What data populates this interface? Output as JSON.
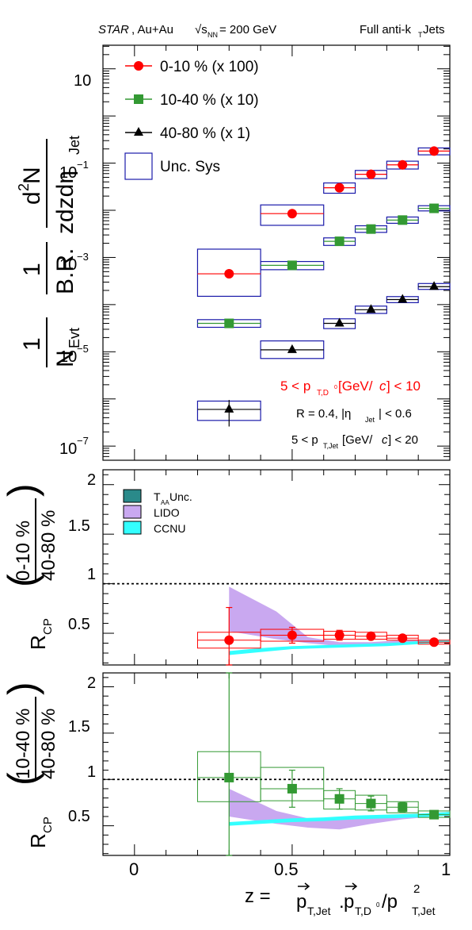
{
  "header": {
    "experiment": "STAR",
    "system": ", Au+Au",
    "energy": "√s",
    "energy_sub": "NN",
    "energy_value": " = 200 GeV",
    "jets_label": "Full anti-k",
    "jets_sub": "T",
    "jets_suffix": " Jets"
  },
  "colors": {
    "central": "#ff0000",
    "mid": "#339933",
    "peripheral": "#000000",
    "sys_box": "#1a1aaa",
    "taa": "#2a8a8a",
    "lido": "#c9a8f0",
    "ccnu": "#33ffff"
  },
  "top_panel": {
    "y_axis_label": {
      "frac1_num": "1",
      "frac1_den": "N",
      "frac1_den_sub": "Evt",
      "frac2_num": "1",
      "frac2_den": "B.R.",
      "frac3_num": "d",
      "frac3_num_sup": "2",
      "frac3_num_rest": "N",
      "frac3_den": "zdzdη",
      "frac3_den_sub": "Jet"
    },
    "y_ticks": [
      "10",
      "10",
      "10",
      "10",
      "10"
    ],
    "y_tick_exps": [
      "",
      "−1",
      "−3",
      "−5",
      "−7"
    ],
    "legend": [
      {
        "label": "0-10 % (x 100)",
        "marker": "circle"
      },
      {
        "label": "10-40 % (x 10)",
        "marker": "square"
      },
      {
        "label": "40-80 % (x 1)",
        "marker": "triangle"
      },
      {
        "label": "Unc. Sys",
        "marker": "box"
      }
    ],
    "annotations": {
      "pt_d": "5 < p",
      "pt_d_sub": "T,D",
      "pt_d_sup": "0",
      "pt_d_rest": " [GeV/",
      "pt_d_c": "c",
      "pt_d_end": "] < 10",
      "radius": "R = 0.4, |η",
      "radius_sub": "Jet",
      "radius_end": "| < 0.6",
      "pt_jet": "5 < p",
      "pt_jet_sub": "T,Jet",
      "pt_jet_rest": " [GeV/",
      "pt_jet_c": "c",
      "pt_jet_end": "] < 20"
    }
  },
  "middle_panel": {
    "y_label": "R",
    "y_label_sub": "CP",
    "ratio_num": "0-10 %",
    "ratio_den": "40-80 %",
    "y_ticks": [
      "0.5",
      "1",
      "1.5",
      "2"
    ],
    "legend": [
      {
        "label": "T",
        "sub": "AA",
        "rest": " Unc."
      },
      {
        "label": "LIDO",
        "sub": "",
        "rest": ""
      },
      {
        "label": "CCNU",
        "sub": "",
        "rest": ""
      }
    ]
  },
  "bottom_panel": {
    "y_label": "R",
    "y_label_sub": "CP",
    "ratio_num": "10-40 %",
    "ratio_den": "40-80 %",
    "y_ticks": [
      "0.5",
      "1",
      "1.5",
      "2"
    ],
    "x_ticks": [
      "0",
      "0.5",
      "1"
    ],
    "x_label": {
      "z": "z =",
      "p1": "p",
      "p1_sub": "T,Jet",
      "dot": ".",
      "p2": "p",
      "p2_sub": "T,D",
      "p2_sup": "0",
      "slash": "/p",
      "p3_sup": "2",
      "p3_sub": "T,Jet"
    }
  },
  "chart_data": [
    {
      "type": "scatter",
      "title": "",
      "xlim": [
        -0.1,
        1.0
      ],
      "ylim_log10": [
        -7.3,
        1.5
      ],
      "log_y": true,
      "series": [
        {
          "name": "0-10 % (x 100)",
          "points": [
            {
              "x": 0.3,
              "xlo": 0.2,
              "xhi": 0.4,
              "y": 0.00045,
              "ylo": 0.00015,
              "yhi": 0.0015
            },
            {
              "x": 0.5,
              "xlo": 0.4,
              "xhi": 0.6,
              "y": 0.0085,
              "ylo": 0.0048,
              "yhi": 0.013
            },
            {
              "x": 0.65,
              "xlo": 0.6,
              "xhi": 0.7,
              "y": 0.03,
              "ylo": 0.023,
              "yhi": 0.038
            },
            {
              "x": 0.75,
              "xlo": 0.7,
              "xhi": 0.8,
              "y": 0.058,
              "ylo": 0.047,
              "yhi": 0.07
            },
            {
              "x": 0.85,
              "xlo": 0.8,
              "xhi": 0.9,
              "y": 0.092,
              "ylo": 0.075,
              "yhi": 0.11
            },
            {
              "x": 0.95,
              "xlo": 0.9,
              "xhi": 1.0,
              "y": 0.18,
              "ylo": 0.15,
              "yhi": 0.21
            }
          ]
        },
        {
          "name": "10-40 % (x 10)",
          "points": [
            {
              "x": 0.3,
              "xlo": 0.2,
              "xhi": 0.4,
              "y": 4e-05,
              "ylo": 3.3e-05,
              "yhi": 4.8e-05
            },
            {
              "x": 0.5,
              "xlo": 0.4,
              "xhi": 0.6,
              "y": 0.00068,
              "ylo": 0.00055,
              "yhi": 0.00082
            },
            {
              "x": 0.65,
              "xlo": 0.6,
              "xhi": 0.7,
              "y": 0.0022,
              "ylo": 0.0018,
              "yhi": 0.0026
            },
            {
              "x": 0.75,
              "xlo": 0.7,
              "xhi": 0.8,
              "y": 0.004,
              "ylo": 0.0034,
              "yhi": 0.0047
            },
            {
              "x": 0.85,
              "xlo": 0.8,
              "xhi": 0.9,
              "y": 0.0062,
              "ylo": 0.0053,
              "yhi": 0.0072
            },
            {
              "x": 0.95,
              "xlo": 0.9,
              "xhi": 1.0,
              "y": 0.011,
              "ylo": 0.0097,
              "yhi": 0.0125
            }
          ]
        },
        {
          "name": "40-80 % (x 1)",
          "points": [
            {
              "x": 0.3,
              "xlo": 0.2,
              "xhi": 0.4,
              "y": 6e-07,
              "ylo": 3.5e-07,
              "yhi": 9e-07,
              "stat_lo": 2.6e-07,
              "stat_hi": 9.5e-07
            },
            {
              "x": 0.5,
              "xlo": 0.4,
              "xhi": 0.6,
              "y": 1.1e-05,
              "ylo": 7.2e-06,
              "yhi": 1.7e-05
            },
            {
              "x": 0.65,
              "xlo": 0.6,
              "xhi": 0.7,
              "y": 4e-05,
              "ylo": 3.1e-05,
              "yhi": 5e-05
            },
            {
              "x": 0.75,
              "xlo": 0.7,
              "xhi": 0.8,
              "y": 7.8e-05,
              "ylo": 6.5e-05,
              "yhi": 9.3e-05
            },
            {
              "x": 0.85,
              "xlo": 0.8,
              "xhi": 0.9,
              "y": 0.000128,
              "ylo": 0.00011,
              "yhi": 0.000148
            },
            {
              "x": 0.95,
              "xlo": 0.9,
              "xhi": 1.0,
              "y": 0.00024,
              "ylo": 0.00021,
              "yhi": 0.00028
            }
          ]
        }
      ]
    },
    {
      "type": "scatter",
      "title": "",
      "xlim": [
        -0.1,
        1.0
      ],
      "ylim": [
        0.18,
        2.15
      ],
      "reference_line": 1,
      "series": [
        {
          "name": "0-10 %",
          "points": [
            {
              "x": 0.3,
              "y": 0.43,
              "stat_lo": 0.1,
              "stat_hi": 0.76,
              "sys_lo": 0.35,
              "sys_hi": 0.51,
              "xlo": 0.2,
              "xhi": 0.4
            },
            {
              "x": 0.5,
              "y": 0.48,
              "stat_lo": 0.4,
              "stat_hi": 0.56,
              "sys_lo": 0.42,
              "sys_hi": 0.54,
              "xlo": 0.4,
              "xhi": 0.6
            },
            {
              "x": 0.65,
              "y": 0.48,
              "stat_lo": 0.43,
              "stat_hi": 0.53,
              "sys_lo": 0.44,
              "sys_hi": 0.52,
              "xlo": 0.6,
              "xhi": 0.7
            },
            {
              "x": 0.75,
              "y": 0.47,
              "stat_lo": 0.44,
              "stat_hi": 0.5,
              "sys_lo": 0.44,
              "sys_hi": 0.51,
              "xlo": 0.7,
              "xhi": 0.8
            },
            {
              "x": 0.85,
              "y": 0.45,
              "stat_lo": 0.43,
              "stat_hi": 0.47,
              "sys_lo": 0.43,
              "sys_hi": 0.48,
              "xlo": 0.8,
              "xhi": 0.9
            },
            {
              "x": 0.95,
              "y": 0.41,
              "stat_lo": 0.4,
              "stat_hi": 0.42,
              "sys_lo": 0.39,
              "sys_hi": 0.43,
              "xlo": 0.9,
              "xhi": 1.0
            }
          ]
        }
      ],
      "bands": [
        {
          "name": "LIDO",
          "x": [
            0.3,
            0.45,
            0.55,
            0.65,
            0.75,
            0.85,
            0.95,
            1.0
          ],
          "lo": [
            0.52,
            0.44,
            0.4,
            0.37,
            0.37,
            0.39,
            0.4,
            0.41
          ],
          "hi": [
            0.97,
            0.72,
            0.46,
            0.41,
            0.41,
            0.43,
            0.43,
            0.43
          ]
        },
        {
          "name": "CCNU",
          "x": [
            0.3,
            0.4,
            0.5,
            0.6,
            0.7,
            0.8,
            0.9,
            1.0
          ],
          "lo": [
            0.28,
            0.31,
            0.34,
            0.35,
            0.36,
            0.37,
            0.39,
            0.41
          ],
          "hi": [
            0.32,
            0.35,
            0.37,
            0.38,
            0.39,
            0.4,
            0.42,
            0.43
          ]
        }
      ]
    },
    {
      "type": "scatter",
      "title": "",
      "xlim": [
        -0.1,
        1.0
      ],
      "ylim": [
        0.18,
        2.15
      ],
      "reference_line": 1,
      "series": [
        {
          "name": "10-40 %",
          "points": [
            {
              "x": 0.3,
              "y": 1.02,
              "stat_lo": 0.1,
              "stat_hi": 2.15,
              "sys_lo": 0.76,
              "sys_hi": 1.3,
              "xlo": 0.2,
              "xhi": 0.4
            },
            {
              "x": 0.5,
              "y": 0.9,
              "stat_lo": 0.7,
              "stat_hi": 1.1,
              "sys_lo": 0.77,
              "sys_hi": 1.13,
              "xlo": 0.4,
              "xhi": 0.6
            },
            {
              "x": 0.65,
              "y": 0.79,
              "stat_lo": 0.68,
              "stat_hi": 0.9,
              "sys_lo": 0.68,
              "sys_hi": 0.88,
              "xlo": 0.6,
              "xhi": 0.7
            },
            {
              "x": 0.75,
              "y": 0.74,
              "stat_lo": 0.66,
              "stat_hi": 0.82,
              "sys_lo": 0.67,
              "sys_hi": 0.83,
              "xlo": 0.7,
              "xhi": 0.8
            },
            {
              "x": 0.85,
              "y": 0.7,
              "stat_lo": 0.65,
              "stat_hi": 0.75,
              "sys_lo": 0.64,
              "sys_hi": 0.76,
              "xlo": 0.8,
              "xhi": 0.9
            },
            {
              "x": 0.95,
              "y": 0.62,
              "stat_lo": 0.6,
              "stat_hi": 0.64,
              "sys_lo": 0.59,
              "sys_hi": 0.66,
              "xlo": 0.9,
              "xhi": 1.0
            }
          ]
        }
      ],
      "bands": [
        {
          "name": "LIDO",
          "x": [
            0.3,
            0.45,
            0.55,
            0.65,
            0.75,
            0.85,
            0.95,
            1.0
          ],
          "lo": [
            0.6,
            0.52,
            0.48,
            0.46,
            0.52,
            0.57,
            0.6,
            0.61
          ],
          "hi": [
            0.9,
            0.66,
            0.58,
            0.57,
            0.6,
            0.62,
            0.64,
            0.65
          ]
        },
        {
          "name": "CCNU",
          "x": [
            0.3,
            0.4,
            0.5,
            0.6,
            0.7,
            0.8,
            0.9,
            1.0
          ],
          "lo": [
            0.5,
            0.52,
            0.54,
            0.55,
            0.57,
            0.58,
            0.59,
            0.61
          ],
          "hi": [
            0.54,
            0.56,
            0.58,
            0.59,
            0.61,
            0.62,
            0.63,
            0.65
          ]
        }
      ]
    }
  ]
}
